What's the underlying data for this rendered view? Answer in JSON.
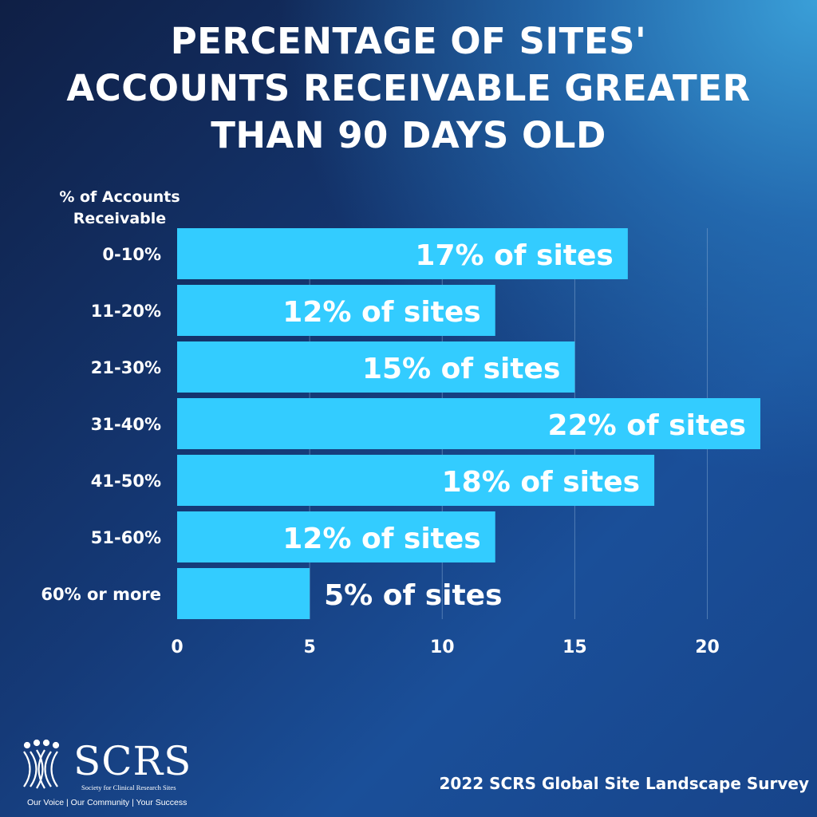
{
  "title_lines": [
    "PERCENTAGE OF SITES'",
    "ACCOUNTS RECEIVABLE GREATER",
    "THAN 90 DAYS OLD"
  ],
  "footer": "2022 SCRS Global Site Landscape Survey",
  "logo": {
    "name": "SCRS",
    "subtitle": "Society for Clinical Research Sites",
    "tagline": "Our Voice | Our Community | Your Success"
  },
  "colors": {
    "bar": "#33ccff",
    "text": "#ffffff",
    "grid": "#7fa6d0"
  },
  "chart_data": {
    "type": "bar",
    "orientation": "horizontal",
    "title": "PERCENTAGE OF SITES' ACCOUNTS RECEIVABLE GREATER THAN 90 DAYS OLD",
    "ylabel": "% of Accounts Receivable",
    "categories": [
      "0-10%",
      "11-20%",
      "21-30%",
      "31-40%",
      "41-50%",
      "51-60%",
      "60% or more"
    ],
    "values": [
      17,
      12,
      15,
      22,
      18,
      12,
      5
    ],
    "data_labels": [
      "17% of sites",
      "12% of sites",
      "15% of sites",
      "22% of sites",
      "18% of sites",
      "12% of sites",
      "5% of sites"
    ],
    "xlim": [
      0,
      22
    ],
    "xticks": [
      0,
      5,
      10,
      15,
      20
    ],
    "xtick_labels": [
      "0",
      "5",
      "10",
      "15",
      "20"
    ],
    "grid": true
  }
}
